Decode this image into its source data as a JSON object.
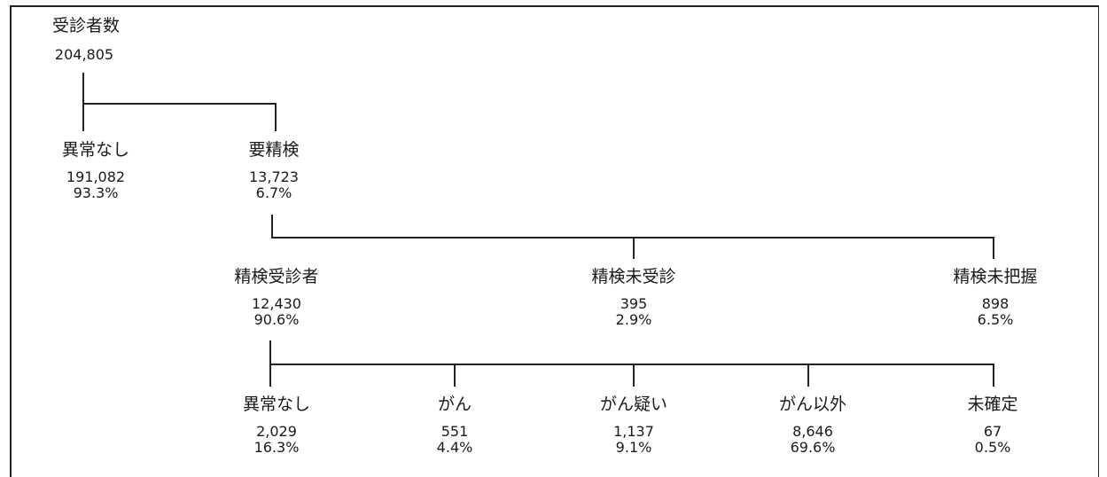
{
  "root": {
    "label": "受診者数",
    "count": "204,805"
  },
  "level1": {
    "normal": {
      "label": "異常なし",
      "count": "191,082",
      "percent": "93.3%"
    },
    "needs_exam": {
      "label": "要精検",
      "count": "13,723",
      "percent": "6.7%"
    }
  },
  "level2": {
    "examined": {
      "label": "精検受診者",
      "count": "12,430",
      "percent": "90.6%"
    },
    "not_examined": {
      "label": "精検未受診",
      "count": "395",
      "percent": "2.9%"
    },
    "unknown": {
      "label": "精検未把握",
      "count": "898",
      "percent": "6.5%"
    }
  },
  "level3": {
    "normal": {
      "label": "異常なし",
      "count": "2,029",
      "percent": "16.3%"
    },
    "cancer": {
      "label": "がん",
      "count": "551",
      "percent": "4.4%"
    },
    "suspected": {
      "label": "がん疑い",
      "count": "1,137",
      "percent": "9.1%"
    },
    "other": {
      "label": "がん以外",
      "count": "8,646",
      "percent": "69.6%"
    },
    "undetermined": {
      "label": "未確定",
      "count": "67",
      "percent": "0.5%"
    }
  }
}
